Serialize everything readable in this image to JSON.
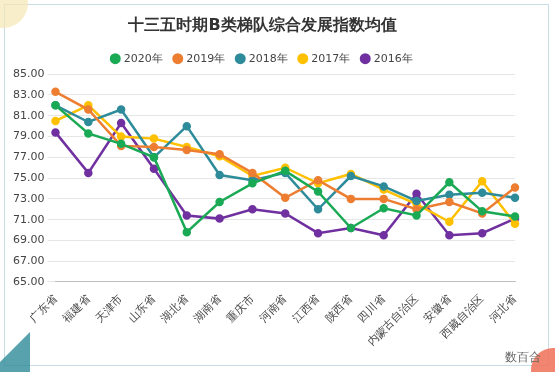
{
  "chart_data": {
    "type": "line",
    "title": "十三五时期B类梯队综合发展指数均值",
    "annotations": [
      "数百合"
    ],
    "categories": [
      "广东省",
      "福建省",
      "天津市",
      "山东省",
      "湖北省",
      "湖南省",
      "重庆市",
      "河南省",
      "江西省",
      "陕西省",
      "四川省",
      "内蒙古自治区",
      "安徽省",
      "西藏自治区",
      "河北省"
    ],
    "series": [
      {
        "name": "2020年",
        "color": "#1aaa55",
        "values": [
          82.0,
          79.3,
          78.3,
          77.0,
          69.8,
          72.7,
          74.5,
          75.7,
          73.7,
          70.2,
          72.1,
          71.4,
          74.6,
          71.8,
          71.3
        ]
      },
      {
        "name": "2019年",
        "color": "#ed7d31",
        "values": [
          83.3,
          81.6,
          78.1,
          78.0,
          77.7,
          77.3,
          75.5,
          73.1,
          74.8,
          73.0,
          73.0,
          72.0,
          72.7,
          71.6,
          74.1
        ]
      },
      {
        "name": "2018年",
        "color": "#2e8b9a",
        "values": [
          82.0,
          80.4,
          81.6,
          77.0,
          80.0,
          75.3,
          74.8,
          75.5,
          72.0,
          75.2,
          74.2,
          72.8,
          73.4,
          73.6,
          73.1
        ]
      },
      {
        "name": "2017年",
        "color": "#ffc000",
        "values": [
          80.5,
          82.0,
          79.0,
          78.8,
          78.0,
          77.1,
          75.2,
          76.0,
          74.5,
          75.4,
          73.9,
          72.5,
          70.8,
          74.7,
          70.6
        ]
      },
      {
        "name": "2016年",
        "color": "#7030a0",
        "values": [
          79.4,
          75.5,
          80.3,
          75.9,
          71.4,
          71.1,
          72.0,
          71.6,
          69.7,
          70.2,
          69.5,
          73.5,
          69.5,
          69.7,
          71.1
        ]
      }
    ],
    "ylim": [
      65,
      85
    ],
    "yticks": [
      {
        "value": 65,
        "label": "65.00"
      },
      {
        "value": 67,
        "label": "67.00"
      },
      {
        "value": 69,
        "label": "69.00"
      },
      {
        "value": 71,
        "label": "71.00"
      },
      {
        "value": 73,
        "label": "73.00"
      },
      {
        "value": 75,
        "label": "75.00"
      },
      {
        "value": 77,
        "label": "77.00"
      },
      {
        "value": 79,
        "label": "79.00"
      },
      {
        "value": 81,
        "label": "81.00"
      },
      {
        "value": 83,
        "label": "83.00"
      },
      {
        "value": 85,
        "label": "85.00"
      }
    ],
    "grid": true,
    "legend": "top",
    "marker": "circle",
    "line_style": "solid"
  }
}
